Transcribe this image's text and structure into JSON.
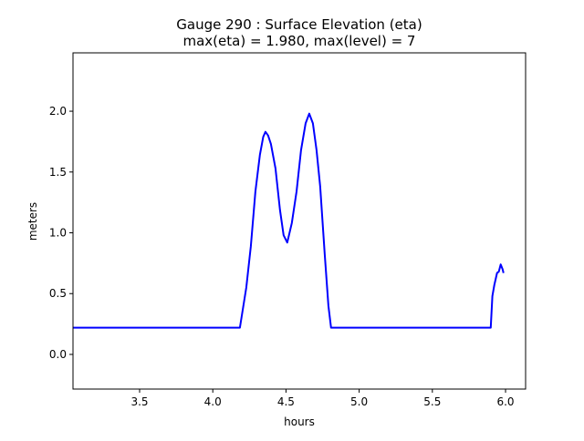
{
  "chart_data": {
    "type": "line",
    "title_line1": "Gauge 290 : Surface Elevation (eta)",
    "title_line2": "max(eta) =   1.980,    max(level) = 7",
    "xlabel": "hours",
    "ylabel": "meters",
    "xlim": [
      3.045,
      6.137
    ],
    "ylim": [
      -0.285,
      2.48
    ],
    "xticks": [
      3.5,
      4.0,
      4.5,
      5.0,
      5.5,
      6.0
    ],
    "xtick_labels": [
      "3.5",
      "4.0",
      "4.5",
      "5.0",
      "5.5",
      "6.0"
    ],
    "yticks": [
      0.0,
      0.5,
      1.0,
      1.5,
      2.0
    ],
    "ytick_labels": [
      "0.0",
      "0.5",
      "1.0",
      "1.5",
      "2.0"
    ],
    "grid": false,
    "series": [
      {
        "name": "eta",
        "color": "#0000ff",
        "x": [
          3.045,
          4.185,
          4.229,
          4.26,
          4.291,
          4.322,
          4.345,
          4.36,
          4.378,
          4.397,
          4.428,
          4.459,
          4.484,
          4.509,
          4.54,
          4.572,
          4.603,
          4.634,
          4.659,
          4.684,
          4.709,
          4.734,
          4.765,
          4.79,
          4.808,
          5.899,
          5.91,
          5.923,
          5.942,
          5.954,
          5.967,
          5.98,
          5.986
        ],
        "y": [
          0.22,
          0.22,
          0.55,
          0.89,
          1.34,
          1.64,
          1.79,
          1.83,
          1.8,
          1.73,
          1.53,
          1.19,
          0.98,
          0.92,
          1.08,
          1.34,
          1.68,
          1.9,
          1.98,
          1.9,
          1.68,
          1.38,
          0.82,
          0.4,
          0.22,
          0.22,
          0.48,
          0.57,
          0.67,
          0.68,
          0.74,
          0.7,
          0.67
        ]
      }
    ]
  }
}
